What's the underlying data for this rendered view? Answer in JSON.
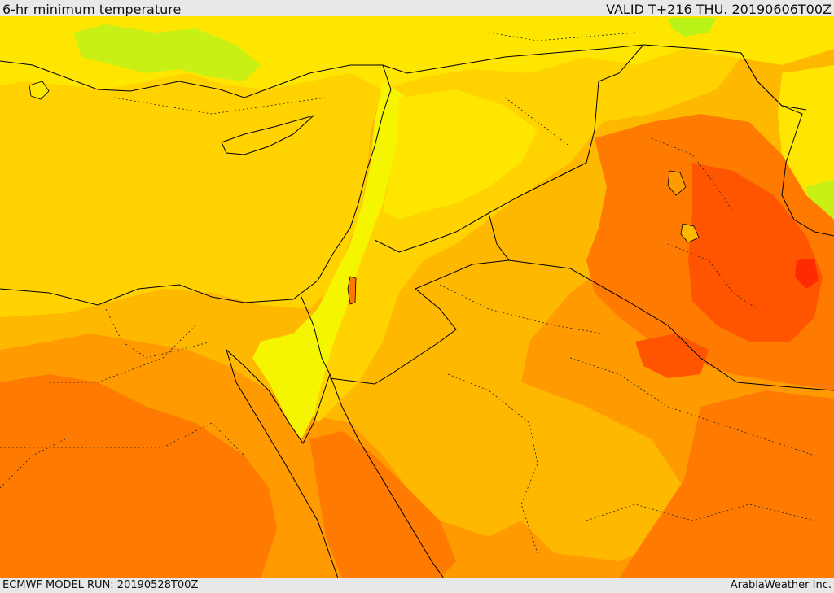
{
  "header": {
    "title": "6-hr minimum temperature",
    "valid": "VALID T+216 THU. 20190606T00Z"
  },
  "footer": {
    "model_run": "ECMWF MODEL RUN: 20190528T00Z",
    "credit": "ArabiaWeather Inc."
  },
  "map": {
    "field": "6-hr minimum temperature",
    "colors": {
      "green": "#b9f217",
      "light_yellow": "#f5f500",
      "yellow": "#ffe600",
      "gold": "#ffd200",
      "amber": "#ffb800",
      "orange": "#ff9a00",
      "dark_orange": "#ff7a00",
      "red_orange": "#ff5500",
      "red": "#ff2a00",
      "border_line": "#000000",
      "boundary_dotted": "#222222"
    }
  }
}
